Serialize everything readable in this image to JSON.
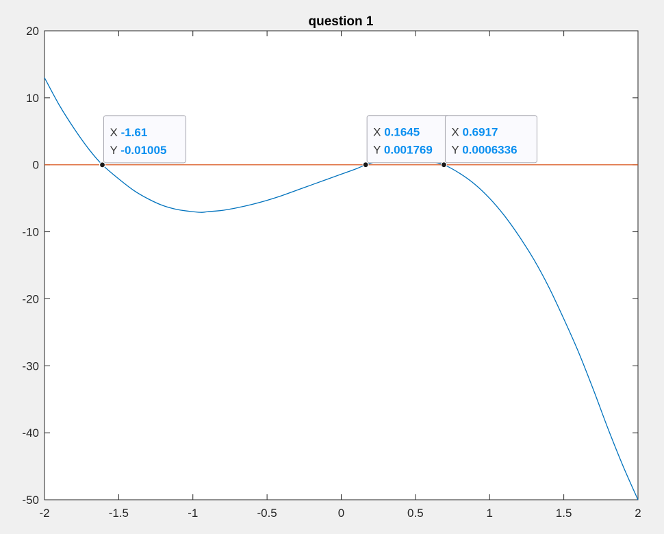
{
  "chart_data": {
    "type": "line",
    "title": "question 1",
    "xlabel": "",
    "ylabel": "",
    "xlim": [
      -2,
      2
    ],
    "ylim": [
      -50,
      20
    ],
    "x_ticks": [
      -2,
      -1.5,
      -1,
      -0.5,
      0,
      0.5,
      1,
      1.5,
      2
    ],
    "x_tick_labels": [
      "-2",
      "-1.5",
      "-1",
      "-0.5",
      "0",
      "0.5",
      "1",
      "1.5",
      "2"
    ],
    "y_ticks": [
      20,
      10,
      0,
      -10,
      -20,
      -30,
      -40,
      -50
    ],
    "y_tick_labels": [
      "20",
      "10",
      "0",
      "-10",
      "-20",
      "-30",
      "-40",
      "-50"
    ],
    "grid": false,
    "series": [
      {
        "color": "#0072bd",
        "x": [
          -2,
          -1.9,
          -1.8,
          -1.7,
          -1.61,
          -1.5,
          -1.4,
          -1.3,
          -1.2,
          -1.1,
          -1,
          -0.94,
          -0.9,
          -0.8,
          -0.7,
          -0.6,
          -0.5,
          -0.4,
          -0.3,
          -0.2,
          -0.1,
          0,
          0.1,
          0.1645,
          0.2,
          0.3,
          0.4,
          0.5,
          0.6,
          0.6917,
          0.8,
          0.9,
          1,
          1.1,
          1.2,
          1.3,
          1.4,
          1.5,
          1.6,
          1.7,
          1.8,
          1.9,
          2
        ],
        "y": [
          13,
          8.9,
          5.4,
          2.3,
          0,
          -2.1,
          -3.8,
          -5.1,
          -6.1,
          -6.7,
          -7.0,
          -7.1,
          -7.0,
          -6.8,
          -6.4,
          -5.9,
          -5.3,
          -4.6,
          -3.8,
          -3.0,
          -2.2,
          -1.4,
          -0.6,
          0.0018,
          0.25,
          0.8,
          1.0,
          0.9,
          0.5,
          0.0006,
          -1.3,
          -2.9,
          -5.0,
          -7.6,
          -10.7,
          -14.2,
          -18.3,
          -23.0,
          -28.0,
          -33.6,
          -39.5,
          -45.0,
          -50
        ]
      },
      {
        "color": "#d95319",
        "x": [
          -2,
          2
        ],
        "y": [
          0,
          0
        ]
      }
    ],
    "datatips": [
      {
        "x_key": "X",
        "y_key": "Y",
        "x_value": "-1.61",
        "y_value": "-0.01005",
        "x": -1.61,
        "y": -0.01005
      },
      {
        "x_key": "X",
        "y_key": "Y",
        "x_value": "0.1645",
        "y_value": "0.001769",
        "x": 0.1645,
        "y": 0.001769
      },
      {
        "x_key": "X",
        "y_key": "Y",
        "x_value": "0.6917",
        "y_value": "0.0006336",
        "x": 0.6917,
        "y": 0.0006336
      }
    ]
  }
}
